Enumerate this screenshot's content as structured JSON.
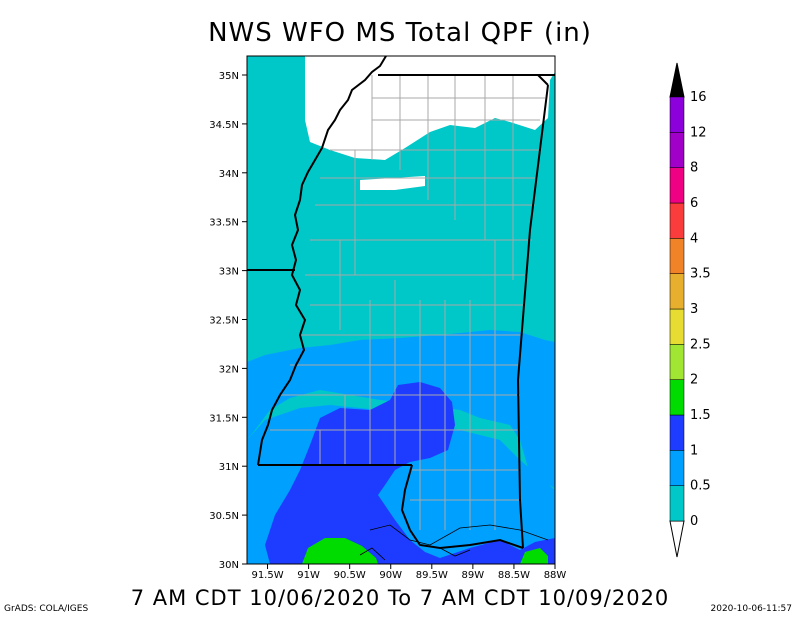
{
  "title": "NWS WFO MS Total QPF (in)",
  "subtitle": "7 AM CDT 10/06/2020 To 7 AM CDT 10/09/2020",
  "credit": "GrADS: COLA/IGES",
  "timestamp": "2020-10-06-11:57",
  "map": {
    "lat_labels": [
      "35N",
      "34.5N",
      "34N",
      "33.5N",
      "33N",
      "32.5N",
      "32N",
      "31.5N",
      "31N",
      "30.5N",
      "30N"
    ],
    "lon_labels": [
      "91.5W",
      "91W",
      "90.5W",
      "90W",
      "89.5W",
      "89W",
      "88.5W",
      "88W"
    ],
    "lat_range": [
      30,
      35
    ],
    "lon_range": [
      -91.75,
      -88
    ]
  },
  "colorbar": {
    "levels": [
      "0",
      "0.5",
      "1",
      "1.5",
      "2",
      "2.5",
      "3",
      "3.5",
      "4",
      "6",
      "8",
      "12",
      "16"
    ],
    "colors": [
      "#00c8c8",
      "#00a0ff",
      "#1e3cff",
      "#00dc00",
      "#a0e632",
      "#e6dc32",
      "#e6af2d",
      "#f08228",
      "#fa3c3c",
      "#f00082",
      "#a000c8",
      "#8c00dc"
    ],
    "over_color": "#000000",
    "under_color": "#ffffff"
  },
  "fill_colors": {
    "none": "#ffffff",
    "c0": "#00c8c8",
    "c05": "#00a0ff",
    "c1": "#1e3cff",
    "c15": "#00dc00"
  }
}
